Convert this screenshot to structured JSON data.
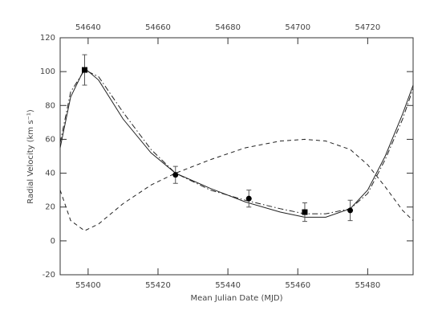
{
  "chart_data": {
    "type": "line",
    "xlabel": "Mean Julian Date (MJD)",
    "ylabel": "Radial Velocity (km s⁻¹)",
    "xlim": [
      55392,
      55493
    ],
    "xticks": [
      55400,
      55420,
      55440,
      55460,
      55480
    ],
    "x2lim": [
      54632,
      54733
    ],
    "x2ticks": [
      54640,
      54660,
      54680,
      54700,
      54720
    ],
    "ylim": [
      -20,
      120
    ],
    "yticks": [
      -20,
      0,
      20,
      40,
      60,
      80,
      100,
      120
    ],
    "curves": [
      {
        "dash": "solid",
        "color": "#222",
        "x": [
          55392,
          55395,
          55399,
          55403,
          55410,
          55418,
          55425,
          55435,
          55445,
          55455,
          55462,
          55468,
          55475,
          55480,
          55485,
          55490,
          55493
        ],
        "values": [
          55,
          85,
          102,
          95,
          72,
          52,
          40,
          31,
          23,
          17,
          14,
          14,
          19,
          30,
          50,
          75,
          92
        ]
      },
      {
        "dash": "dashdot",
        "color": "#222",
        "x": [
          55392,
          55395,
          55399,
          55403,
          55410,
          55418,
          55425,
          55435,
          55445,
          55455,
          55462,
          55468,
          55475,
          55480,
          55485,
          55490,
          55493
        ],
        "values": [
          58,
          88,
          101,
          97,
          76,
          54,
          40,
          30,
          24,
          19,
          16,
          16,
          19,
          28,
          48,
          72,
          90
        ]
      },
      {
        "dash": "dashed",
        "color": "#222",
        "x": [
          55392,
          55395,
          55399,
          55403,
          55410,
          55418,
          55425,
          55435,
          55445,
          55455,
          55462,
          55468,
          55475,
          55480,
          55485,
          55490,
          55493
        ],
        "values": [
          30,
          12,
          6,
          10,
          22,
          33,
          40,
          48,
          55,
          59,
          60,
          59,
          54,
          45,
          32,
          18,
          12
        ]
      }
    ],
    "points": [
      {
        "marker": "square",
        "color": "#000",
        "x": [
          55399,
          55462
        ],
        "values": [
          101,
          17
        ],
        "errors": [
          9,
          5.5
        ]
      },
      {
        "marker": "circle",
        "color": "#000",
        "x": [
          55425,
          55446,
          55475
        ],
        "values": [
          39,
          25,
          18
        ],
        "errors": [
          5,
          5,
          6
        ]
      }
    ]
  }
}
